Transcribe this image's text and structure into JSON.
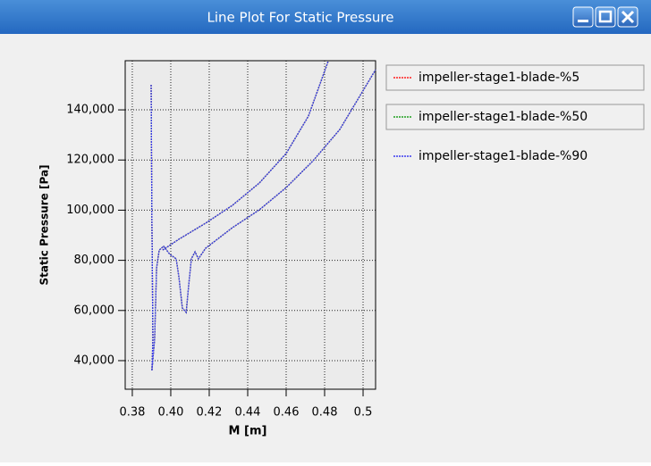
{
  "chart_data": {
    "type": "line",
    "title": "Line Plot For Static Pressure",
    "x_label": "M [m]",
    "y_label": "Static Pressure [Pa]",
    "x": [
      0.3898,
      0.3902,
      0.3907,
      0.3902,
      0.3916,
      0.3926,
      0.394,
      0.3963,
      0.3995,
      0.4028,
      0.4042,
      0.406,
      0.408,
      0.4093,
      0.4107,
      0.4126,
      0.4144,
      0.4181,
      0.432,
      0.446,
      0.46,
      0.474,
      0.4879,
      0.5065,
      null,
      0.3958,
      0.4042,
      0.4181,
      0.432,
      0.446,
      0.46,
      0.4716,
      0.4819
    ],
    "series": [
      {
        "name": "impeller-stage1-blade-%5",
        "color": "#ff2020",
        "values": [
          150000,
          94800,
          48500,
          36000,
          48500,
          77000,
          84100,
          85600,
          82400,
          80600,
          73500,
          61000,
          59200,
          70000,
          80600,
          83400,
          80600,
          84800,
          93000,
          100100,
          109000,
          119700,
          132200,
          156000,
          null,
          84100,
          88400,
          94800,
          101900,
          110800,
          122600,
          137500,
          159500
        ]
      },
      {
        "name": "impeller-stage1-blade-%50",
        "color": "#20a020",
        "values": [
          150000,
          94800,
          48500,
          36000,
          48500,
          77000,
          84100,
          85600,
          82400,
          80600,
          73500,
          61000,
          59200,
          70000,
          80600,
          83400,
          80600,
          84800,
          93000,
          100100,
          109000,
          119700,
          132200,
          156000,
          null,
          84100,
          88400,
          94800,
          101900,
          110800,
          122600,
          137500,
          159500
        ]
      },
      {
        "name": "impeller-stage1-blade-%90",
        "color": "#3a3af0",
        "values": [
          150000,
          94800,
          48500,
          36000,
          48500,
          77000,
          84100,
          85600,
          82400,
          80600,
          73500,
          61000,
          59200,
          70000,
          80600,
          83400,
          80600,
          84800,
          93000,
          100100,
          109000,
          119700,
          132200,
          156000,
          null,
          84100,
          88400,
          94800,
          101900,
          110800,
          122600,
          137500,
          159500
        ]
      }
    ],
    "xlim": [
      0.3763,
      0.5065
    ],
    "ylim": [
      28600,
      159600
    ],
    "xticks": [
      0.38,
      {
        "value": 0.4,
        "label": "0.40"
      },
      0.42,
      0.44,
      0.46,
      0.48,
      0.5
    ],
    "yticks": [
      {
        "value": 40000,
        "label": "40,000"
      },
      {
        "value": 60000,
        "label": "60,000"
      },
      {
        "value": 80000,
        "label": "80,000"
      },
      {
        "value": 100000,
        "label": "100,000"
      },
      {
        "value": 120000,
        "label": "120,000"
      },
      {
        "value": 140000,
        "label": "140,000"
      }
    ],
    "grid": true,
    "legend": "right"
  }
}
